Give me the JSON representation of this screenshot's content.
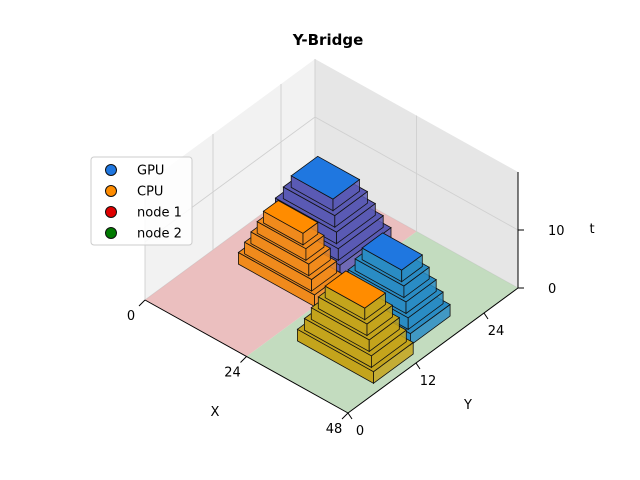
{
  "chart_data": {
    "type": "3d-bar",
    "title": "Y-Bridge",
    "xlabel": "X",
    "ylabel": "Y",
    "zlabel": "t",
    "x_ticks": [
      "0",
      "24",
      "48"
    ],
    "y_ticks": [
      "0",
      "12",
      "24"
    ],
    "z_ticks": [
      "0",
      "10"
    ],
    "xlim": [
      0,
      48
    ],
    "ylim": [
      0,
      30
    ],
    "zlim": [
      0,
      20
    ],
    "legend": {
      "placement": "left",
      "entries": [
        {
          "label": " GPU",
          "color": "#1f77e0"
        },
        {
          "label": " CPU",
          "color": "#ff8c00"
        },
        {
          "label": "node 1",
          "color": "#e00000"
        },
        {
          "label": "node 2",
          "color": "#007a00"
        }
      ]
    },
    "regions": [
      {
        "name": "node 1",
        "x_range": [
          0,
          24
        ],
        "y_range": [
          0,
          30
        ],
        "color": "#e8b4b4"
      },
      {
        "name": "node 2",
        "x_range": [
          24,
          48
        ],
        "y_range": [
          0,
          30
        ],
        "color": "#b8d6b4"
      }
    ],
    "series": [
      {
        "name": "GPU node 1",
        "x_range": [
          3,
          22
        ],
        "y_range": [
          18,
          27
        ],
        "t_range": [
          0,
          10
        ],
        "top_color": "#1f77e0",
        "side_color": "#5a5ab4"
      },
      {
        "name": "CPU node 1",
        "x_range": [
          6,
          24
        ],
        "y_range": [
          12,
          17
        ],
        "t_range": [
          0,
          10
        ],
        "top_color": "#ff8c00",
        "side_color": "#f08a1c"
      },
      {
        "name": "GPU node 2",
        "x_range": [
          26,
          44
        ],
        "y_range": [
          14,
          21
        ],
        "t_range": [
          0,
          10
        ],
        "top_color": "#1f77e0",
        "side_color": "#2a8cc4"
      },
      {
        "name": "CPU node 2",
        "x_range": [
          28,
          46
        ],
        "y_range": [
          6,
          13
        ],
        "t_range": [
          0,
          10
        ],
        "top_color": "#ff8c00",
        "side_color": "#c4a41c"
      }
    ]
  }
}
